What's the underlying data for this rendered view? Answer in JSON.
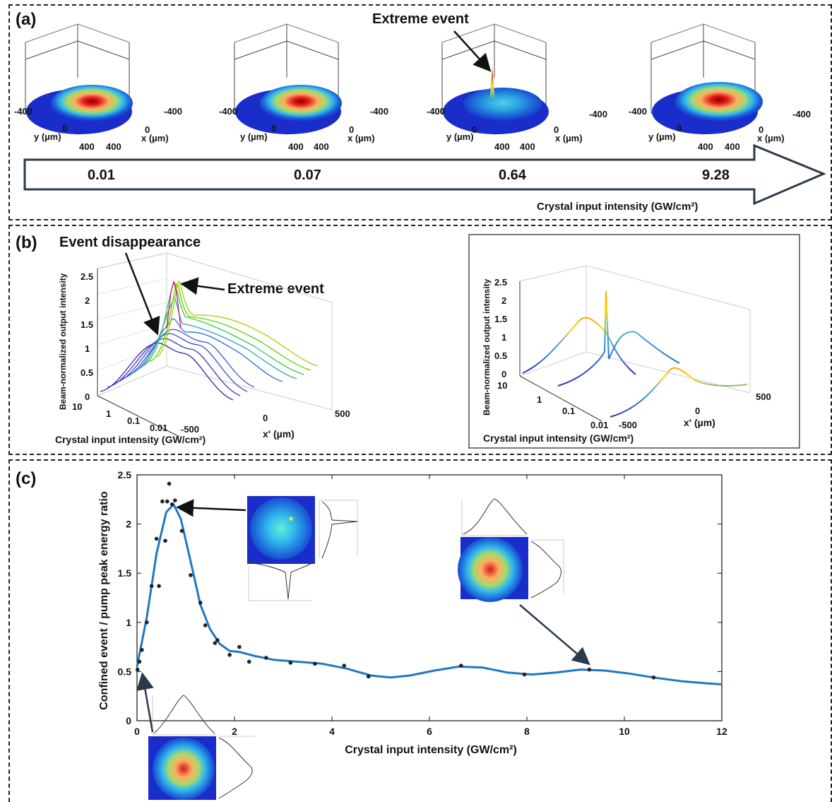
{
  "panel_a": {
    "label": "(a)",
    "annotation": "Extreme event",
    "intensities": [
      "0.01",
      "0.07",
      "0.64",
      "9.28"
    ],
    "arrow_label": "Crystal input intensity (GW/cm²)",
    "axis_ticks": {
      "neg": "-400",
      "zero": "0",
      "pos": "400"
    },
    "y_axis_label": "y (µm)",
    "x_axis_label": "x (µm)"
  },
  "panel_b": {
    "label": "(b)",
    "annotation_disappear": "Event disappearance",
    "annotation_extreme": "Extreme event",
    "z_label": "Beam-normalized output intensity",
    "z_ticks": [
      "0",
      "0.5",
      "1",
      "1.5",
      "2",
      "2.5"
    ],
    "intensity_ticks": [
      "10",
      "1",
      "0.1",
      "0.01"
    ],
    "intensity_label": "Crystal input intensity (GW/cm²)",
    "xprime_ticks": [
      "-500",
      "0",
      "500"
    ],
    "xprime_label": "x' (µm)"
  },
  "panel_c": {
    "label": "(c)"
  },
  "chart_data": {
    "type": "scatter",
    "xlabel": "Crystal input intensity (GW/cm²)",
    "ylabel": "Confined event / pump peak energy ratio",
    "xlim": [
      0,
      12
    ],
    "ylim": [
      0,
      2.5
    ],
    "xticks": [
      "0",
      "2",
      "4",
      "6",
      "8",
      "10",
      "12"
    ],
    "yticks": [
      "0",
      "0.5",
      "1",
      "1.5",
      "2",
      "2.5"
    ],
    "points": [
      [
        0.01,
        0.52
      ],
      [
        0.05,
        0.6
      ],
      [
        0.1,
        0.72
      ],
      [
        0.2,
        1.0
      ],
      [
        0.3,
        1.37
      ],
      [
        0.4,
        1.85
      ],
      [
        0.45,
        1.37
      ],
      [
        0.52,
        2.23
      ],
      [
        0.58,
        1.83
      ],
      [
        0.62,
        2.23
      ],
      [
        0.66,
        2.41
      ],
      [
        0.72,
        2.2
      ],
      [
        0.78,
        2.24
      ],
      [
        0.92,
        1.93
      ],
      [
        1.1,
        1.48
      ],
      [
        1.3,
        1.2
      ],
      [
        1.4,
        0.97
      ],
      [
        1.6,
        0.79
      ],
      [
        1.65,
        0.82
      ],
      [
        1.9,
        0.67
      ],
      [
        2.1,
        0.75
      ],
      [
        2.3,
        0.6
      ],
      [
        2.65,
        0.64
      ],
      [
        3.15,
        0.59
      ],
      [
        3.65,
        0.58
      ],
      [
        4.25,
        0.56
      ],
      [
        4.75,
        0.45
      ],
      [
        6.65,
        0.56
      ],
      [
        7.95,
        0.47
      ],
      [
        9.28,
        0.52
      ],
      [
        10.6,
        0.44
      ]
    ],
    "fit": [
      [
        0.0,
        0.55
      ],
      [
        0.2,
        1.05
      ],
      [
        0.4,
        1.7
      ],
      [
        0.6,
        2.12
      ],
      [
        0.75,
        2.2
      ],
      [
        0.9,
        2.05
      ],
      [
        1.1,
        1.62
      ],
      [
        1.3,
        1.18
      ],
      [
        1.5,
        0.93
      ],
      [
        1.7,
        0.78
      ],
      [
        1.9,
        0.71
      ],
      [
        2.1,
        0.7
      ],
      [
        2.4,
        0.66
      ],
      [
        2.8,
        0.62
      ],
      [
        3.3,
        0.6
      ],
      [
        3.8,
        0.58
      ],
      [
        4.3,
        0.53
      ],
      [
        4.8,
        0.46
      ],
      [
        5.2,
        0.44
      ],
      [
        5.6,
        0.46
      ],
      [
        6.1,
        0.51
      ],
      [
        6.6,
        0.55
      ],
      [
        7.1,
        0.54
      ],
      [
        7.6,
        0.49
      ],
      [
        8.1,
        0.47
      ],
      [
        8.6,
        0.49
      ],
      [
        9.1,
        0.52
      ],
      [
        9.6,
        0.51
      ],
      [
        10.1,
        0.48
      ],
      [
        10.6,
        0.44
      ],
      [
        11.2,
        0.4
      ],
      [
        11.7,
        0.38
      ],
      [
        12.0,
        0.37
      ]
    ],
    "marker_color": "#222222",
    "line_color": "#1f77c4"
  },
  "colors": {
    "jet_red": "#d7191c",
    "jet_blue": "#1a2cc9",
    "fit_line": "#1f77c4"
  }
}
